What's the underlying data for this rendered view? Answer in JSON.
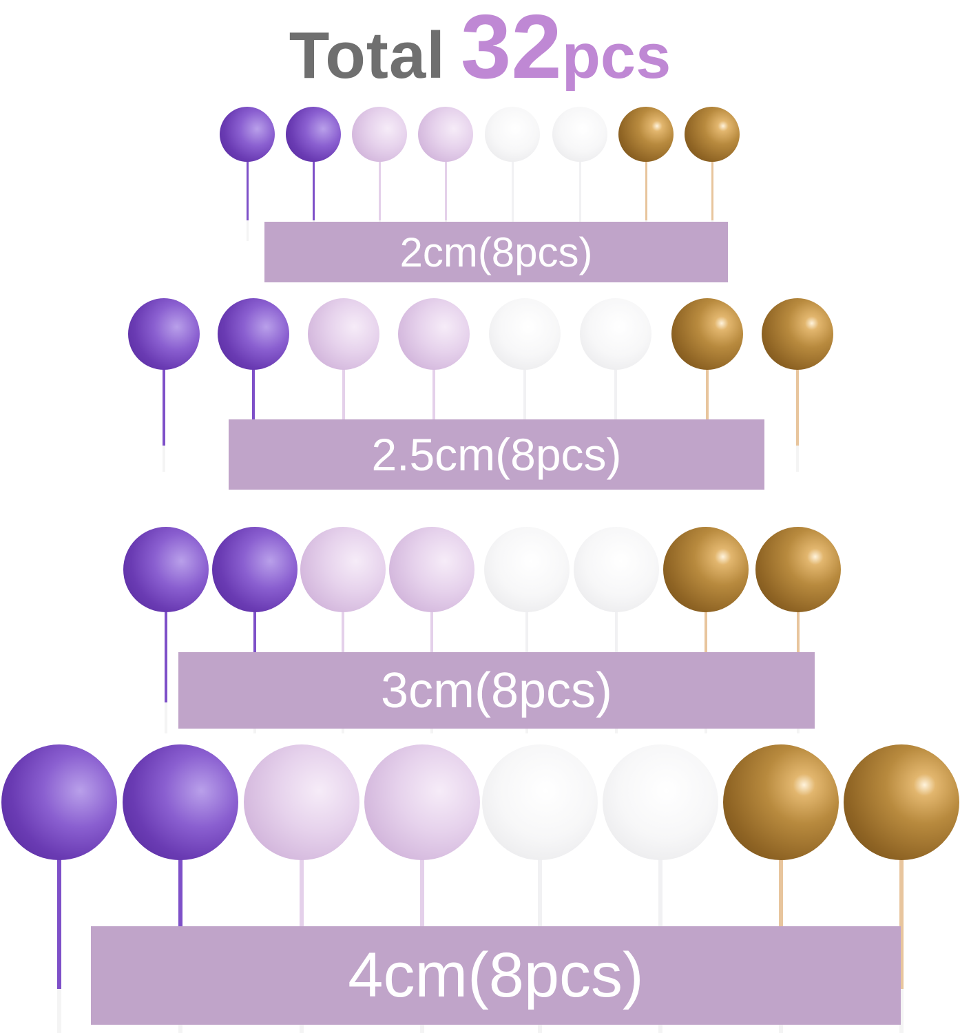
{
  "title": {
    "prefix": "Total",
    "count": "32",
    "unit": "pcs"
  },
  "colors": {
    "title_gray": "#6f6f6f",
    "title_purple": "#bf88d4",
    "label_bar": "#c0a4c9"
  },
  "ball_colors": [
    "purple",
    "purple",
    "light-pink",
    "light-pink",
    "white",
    "white",
    "gold",
    "gold"
  ],
  "rows": [
    {
      "label": "2cm(8pcs)"
    },
    {
      "label": "2.5cm(8pcs)"
    },
    {
      "label": "3cm(8pcs)"
    },
    {
      "label": "4cm(8pcs)"
    }
  ]
}
